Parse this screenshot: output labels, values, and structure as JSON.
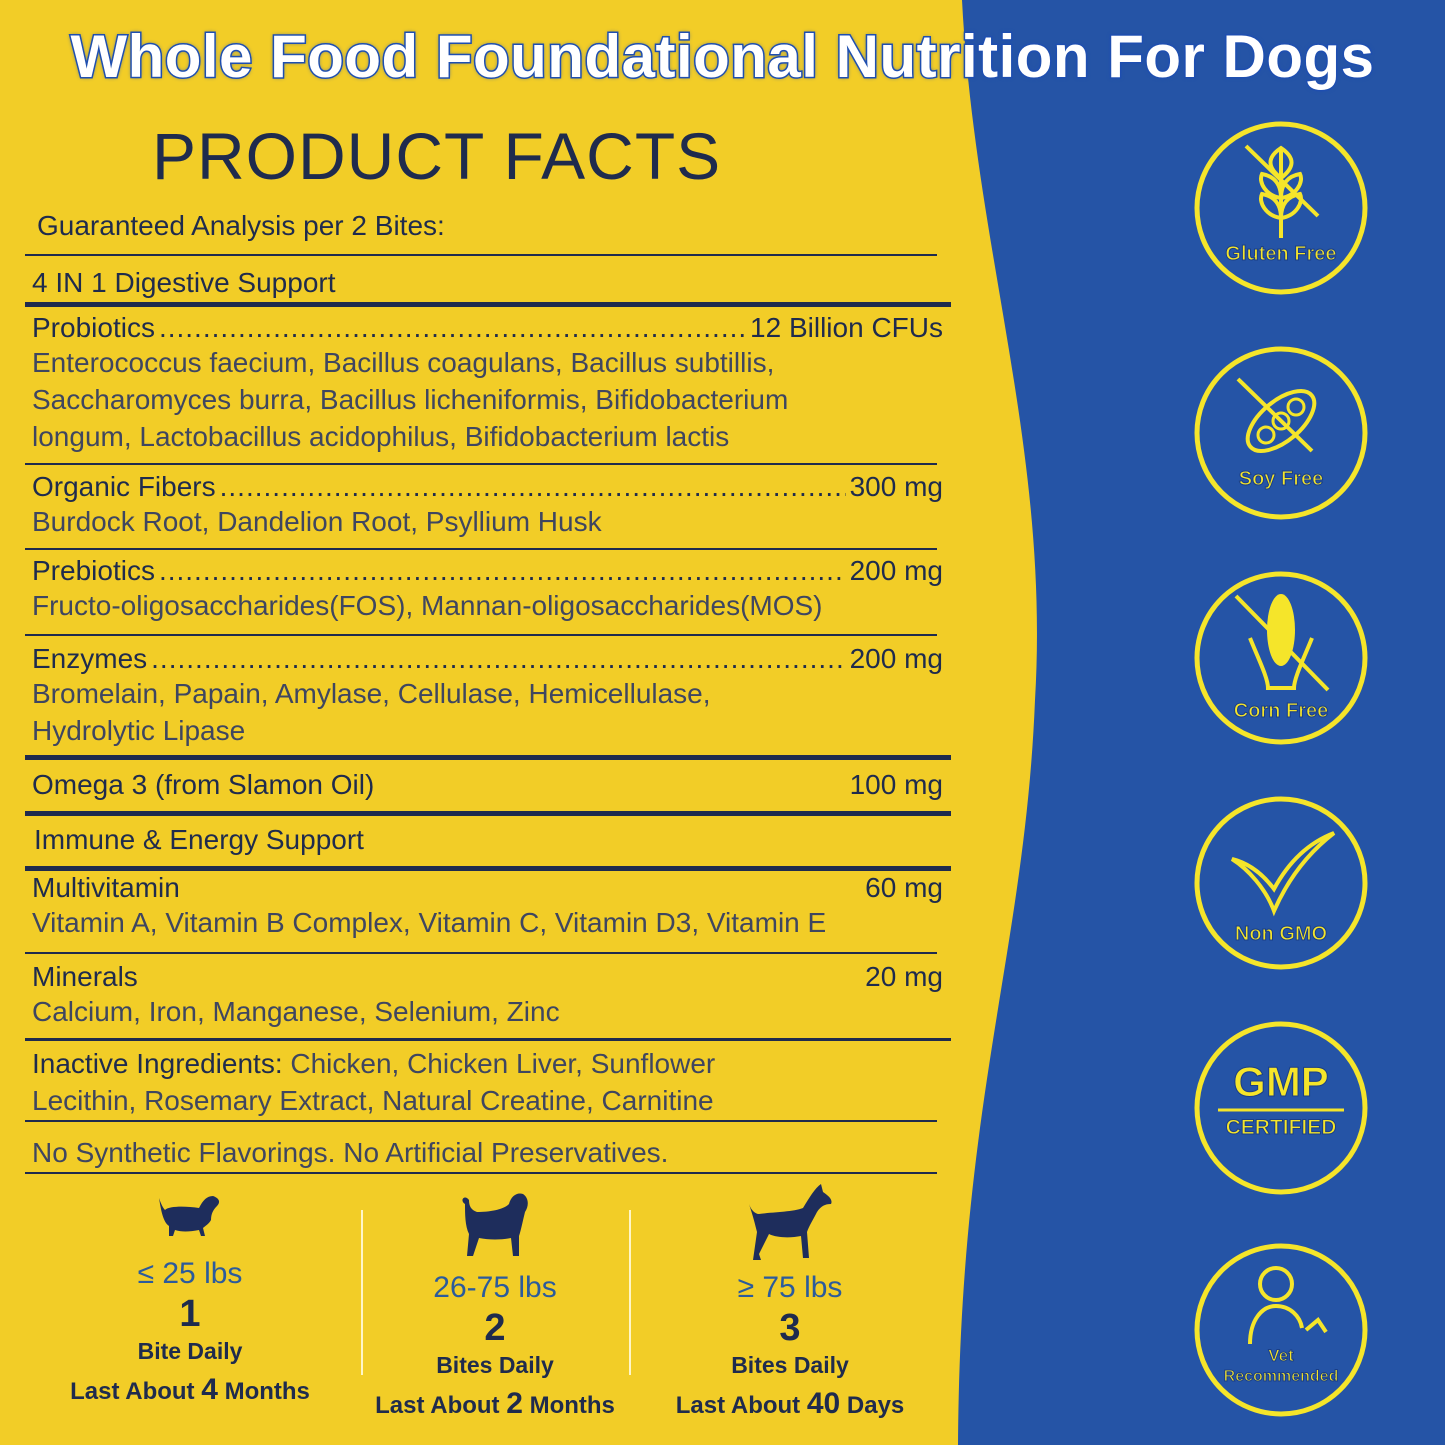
{
  "title": "Whole Food Foundational Nutrition For Dogs",
  "heading": "PRODUCT FACTS",
  "serving": "Guaranteed Analysis per 2 Bites:",
  "colors": {
    "yellow": "#f2cd27",
    "blue": "#2554a6",
    "navy": "#1f2b4d",
    "badge": "#f5e52a"
  },
  "sections": {
    "digestive": "4 IN 1 Digestive Support",
    "probiotics": {
      "name": "Probiotics",
      "amount": "12 Billion CFUs",
      "detail": [
        "Enterococcus faecium, Bacillus coagulans, Bacillus subtillis,",
        "Saccharomyces burra, Bacillus licheniformis, Bifidobacterium",
        "longum, Lactobacillus acidophilus, Bifidobacterium lactis"
      ]
    },
    "fibers": {
      "name": "Organic Fibers",
      "amount": "300 mg",
      "detail": "Burdock Root, Dandelion Root, Psyllium Husk"
    },
    "prebiotics": {
      "name": "Prebiotics",
      "amount": "200 mg",
      "detail": "Fructo-oligosaccharides(FOS), Mannan-oligosaccharides(MOS)"
    },
    "enzymes": {
      "name": "Enzymes",
      "amount": "200 mg",
      "detail": [
        "Bromelain, Papain, Amylase, Cellulase, Hemicellulase,",
        "Hydrolytic Lipase"
      ]
    },
    "omega": {
      "name": "Omega 3 (from Slamon Oil)",
      "amount": "100 mg"
    },
    "immune": "Immune & Energy Support",
    "multivitamin": {
      "name": "Multivitamin",
      "amount": "60 mg",
      "detail": "Vitamin A, Vitamin B Complex, Vitamin C, Vitamin D3, Vitamin E"
    },
    "minerals": {
      "name": "Minerals",
      "amount": "20 mg",
      "detail": "Calcium, Iron, Manganese, Selenium, Zinc"
    },
    "inactive": {
      "name": "Inactive Ingredients:",
      "detail1": " Chicken, Chicken Liver, Sunflower",
      "detail2": "Lecithin, Rosemary Extract, Natural Creatine, Carnitine"
    },
    "note": "No Synthetic Flavorings. No Artificial Preservatives."
  },
  "dosage": [
    {
      "icon": "small-dog-icon",
      "weight": "≤ 25 lbs",
      "count": "1",
      "unit": "Bite Daily",
      "pre": "Last About ",
      "num": "4",
      "post": " Months"
    },
    {
      "icon": "medium-dog-icon",
      "weight": "26-75 lbs",
      "count": "2",
      "unit": "Bites Daily",
      "pre": "Last About ",
      "num": "2",
      "post": " Months"
    },
    {
      "icon": "large-dog-icon",
      "weight": "≥ 75 lbs",
      "count": "3",
      "unit": "Bites Daily",
      "pre": "Last About ",
      "num": "40",
      "post": " Days"
    }
  ],
  "badges": [
    {
      "icon": "wheat-icon",
      "label": "Gluten Free"
    },
    {
      "icon": "soybean-icon",
      "label": "Soy Free"
    },
    {
      "icon": "corn-icon",
      "label": "Corn Free"
    },
    {
      "icon": "check-leaf-icon",
      "label": "Non GMO"
    },
    {
      "icon": "gmp-icon",
      "label": "GMP",
      "sub": "CERTIFIED"
    },
    {
      "icon": "vet-icon",
      "label": "Vet",
      "sub": "Recommended"
    }
  ]
}
